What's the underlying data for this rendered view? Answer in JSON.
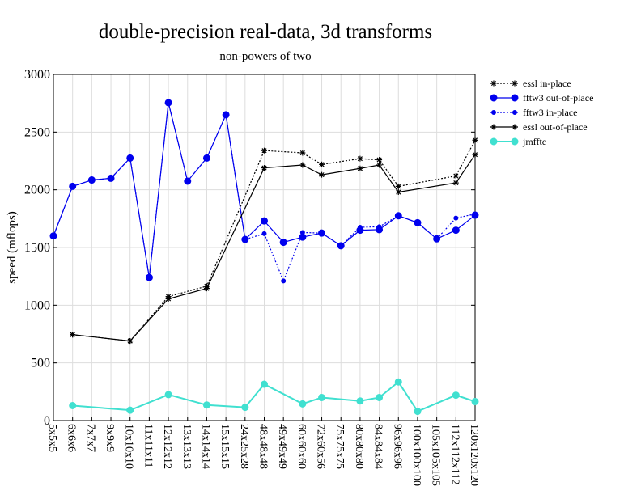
{
  "chart_data": {
    "type": "line",
    "title": "double-precision real-data, 3d transforms",
    "subtitle": "non-powers of two",
    "xlabel": "",
    "ylabel": "speed (mflops)",
    "ylim": [
      0,
      3000
    ],
    "yticks": [
      0,
      500,
      1000,
      1500,
      2000,
      2500,
      3000
    ],
    "grid": true,
    "legend_position": "right",
    "categories": [
      "5x5x5",
      "6x6x6",
      "7x7x7",
      "9x9x9",
      "10x10x10",
      "11x11x11",
      "12x12x12",
      "13x13x13",
      "14x14x14",
      "15x15x15",
      "24x25x28",
      "48x48x48",
      "49x49x49",
      "60x60x60",
      "72x60x56",
      "75x75x75",
      "80x80x80",
      "84x84x84",
      "96x96x96",
      "100x100x100",
      "105x105x105",
      "112x112x112",
      "120x120x120"
    ],
    "series": [
      {
        "name": "essl in-place",
        "color": "#000000",
        "line": "dotted",
        "marker": "star",
        "values": [
          null,
          745,
          null,
          null,
          690,
          null,
          1075,
          null,
          1165,
          null,
          null,
          2340,
          null,
          2320,
          2220,
          null,
          2270,
          2260,
          2030,
          null,
          null,
          2120,
          2430
        ]
      },
      {
        "name": "fftw3 out-of-place",
        "color": "#0000ee",
        "line": "solid",
        "marker": "circle",
        "values": [
          1600,
          2030,
          2085,
          2100,
          2275,
          1240,
          2755,
          2075,
          2275,
          2650,
          1570,
          1730,
          1545,
          1590,
          1625,
          1515,
          1650,
          1655,
          1775,
          1715,
          1575,
          1650,
          1780
        ]
      },
      {
        "name": "fftw3 in-place",
        "color": "#0000ee",
        "line": "dotted",
        "marker": "dot",
        "values": [
          1600,
          2030,
          2085,
          2100,
          2275,
          1240,
          2755,
          2075,
          2275,
          2650,
          1570,
          1620,
          1210,
          1630,
          1625,
          1515,
          1675,
          1680,
          1775,
          1715,
          1575,
          1755,
          1790
        ]
      },
      {
        "name": "essl out-of-place",
        "color": "#000000",
        "line": "solid",
        "marker": "star",
        "values": [
          null,
          745,
          null,
          null,
          690,
          null,
          1055,
          null,
          1145,
          null,
          null,
          2190,
          null,
          2215,
          2130,
          null,
          2185,
          2215,
          1980,
          null,
          null,
          2060,
          2305
        ]
      },
      {
        "name": "jmfftc",
        "color": "#40e0d0",
        "line": "solid",
        "marker": "circle",
        "values": [
          null,
          130,
          null,
          null,
          90,
          null,
          225,
          null,
          135,
          null,
          115,
          315,
          null,
          145,
          200,
          null,
          170,
          200,
          335,
          80,
          null,
          220,
          165
        ]
      }
    ]
  }
}
